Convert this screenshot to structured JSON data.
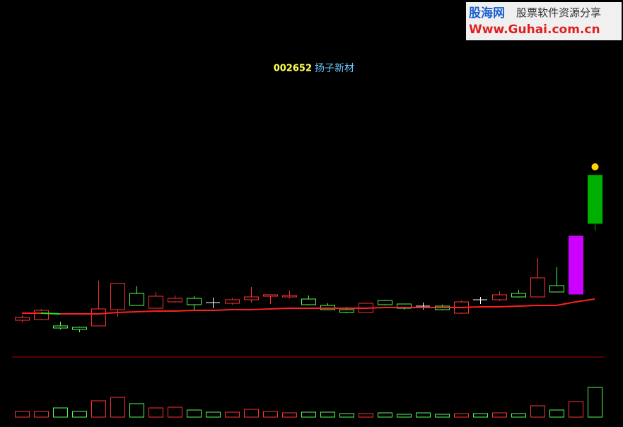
{
  "chart_data": {
    "type": "candlestick",
    "title_code": "002652",
    "title_name": "扬子新材",
    "watermark": {
      "brand": "股海网",
      "slogan": "股票软件资源分享",
      "url": "Www.Guhai.com.cn"
    },
    "up_color": "#ff3232",
    "down_color": "#54fc54",
    "doji_color": "#ffffff",
    "ma_up_color": "#ff2020",
    "ma_down_color": "#30e030",
    "marker_color": "#ffd700",
    "ylim": [
      10,
      36
    ],
    "open": [
      13.7,
      13.8,
      12.9,
      12.7,
      12.9,
      15.2,
      17.5,
      15.4,
      16.3,
      16.8,
      16.2,
      16.1,
      16.6,
      17.1,
      17.0,
      16.7,
      15.8,
      15.2,
      14.8,
      16.5,
      16.0,
      15.7,
      15.7,
      14.7,
      16.6,
      16.6,
      17.5,
      17.0,
      18.6,
      17.4,
      34.2
    ],
    "close": [
      14.1,
      15.1,
      12.6,
      12.4,
      15.3,
      18.9,
      15.8,
      17.1,
      16.8,
      15.9,
      16.2,
      16.6,
      17.0,
      17.3,
      17.2,
      15.9,
      15.2,
      14.8,
      16.1,
      15.9,
      15.4,
      15.7,
      15.2,
      16.3,
      16.6,
      17.3,
      17.0,
      19.7,
      17.7,
      25.6,
      27.4
    ],
    "high": [
      14.4,
      15.3,
      13.5,
      12.8,
      19.3,
      18.9,
      18.5,
      17.7,
      17.2,
      17.1,
      16.9,
      16.8,
      18.4,
      17.3,
      17.9,
      17.2,
      16.1,
      15.6,
      16.2,
      16.6,
      16.0,
      16.2,
      15.9,
      16.5,
      17.0,
      17.8,
      18.0,
      22.5,
      21.2,
      25.6,
      34.2
    ],
    "low": [
      13.4,
      13.7,
      12.4,
      12.0,
      12.9,
      14.2,
      15.8,
      15.4,
      16.2,
      15.2,
      15.4,
      15.9,
      16.2,
      16.0,
      16.8,
      15.8,
      15.2,
      14.7,
      14.8,
      15.8,
      15.2,
      15.2,
      15.1,
      14.6,
      16.0,
      16.4,
      16.9,
      17.0,
      17.7,
      17.4,
      26.4
    ],
    "highlight_fills": [
      null,
      null,
      null,
      null,
      null,
      null,
      null,
      null,
      null,
      null,
      null,
      null,
      null,
      null,
      null,
      null,
      null,
      null,
      null,
      null,
      null,
      null,
      null,
      null,
      null,
      null,
      null,
      null,
      null,
      "#cc00ff",
      "#00b000"
    ],
    "ma": [
      14.7,
      14.7,
      14.6,
      14.6,
      14.6,
      14.8,
      14.9,
      15.0,
      15.0,
      15.1,
      15.1,
      15.2,
      15.2,
      15.3,
      15.4,
      15.4,
      15.4,
      15.4,
      15.4,
      15.5,
      15.5,
      15.5,
      15.5,
      15.5,
      15.6,
      15.6,
      15.7,
      15.8,
      15.8,
      16.3,
      16.7
    ],
    "marker_values": [
      null,
      null,
      null,
      null,
      null,
      null,
      null,
      null,
      null,
      null,
      null,
      null,
      null,
      null,
      null,
      null,
      null,
      null,
      null,
      null,
      null,
      null,
      null,
      null,
      null,
      null,
      null,
      null,
      null,
      null,
      35.4
    ],
    "volume_ylim": [
      0,
      50
    ],
    "volume": [
      8,
      8,
      13,
      8,
      23,
      28,
      19,
      13,
      14,
      10,
      7,
      7,
      11,
      8,
      6,
      7,
      7,
      5,
      5,
      6,
      4,
      6,
      4,
      5,
      5,
      6,
      5,
      16,
      10,
      22,
      42
    ],
    "separator_color": "#b00000"
  }
}
